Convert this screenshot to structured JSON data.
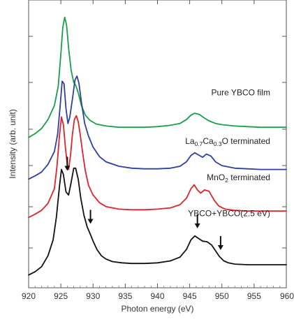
{
  "chart_data": {
    "type": "line",
    "title": "",
    "xlabel": "Photon energy (eV)",
    "ylabel": "Intensity (arb. unit)",
    "xlim": [
      920,
      960
    ],
    "x_ticks": [
      920,
      925,
      930,
      935,
      940,
      945,
      950,
      955,
      960
    ],
    "grid": false,
    "series_labels_inline": true,
    "series": [
      {
        "name": "Pure YBCO film",
        "label": "Pure YBCO film",
        "color": "#1a9e4a",
        "x": [
          920,
          921,
          922,
          923,
          924,
          924.6,
          925.0,
          925.3,
          925.6,
          925.9,
          926.2,
          926.6,
          927.0,
          927.3,
          927.7,
          928.2,
          928.8,
          929.5,
          930.5,
          932,
          934,
          936,
          938,
          940,
          942,
          943.5,
          944.5,
          945.2,
          945.8,
          946.5,
          947.2,
          948,
          949,
          950,
          952,
          954,
          956,
          958,
          960
        ],
        "y": [
          2.2,
          2.26,
          2.34,
          2.48,
          2.7,
          3.0,
          3.5,
          3.92,
          4.08,
          3.95,
          3.6,
          3.25,
          3.06,
          3.02,
          2.9,
          2.7,
          2.55,
          2.47,
          2.41,
          2.38,
          2.36,
          2.36,
          2.36,
          2.37,
          2.39,
          2.42,
          2.48,
          2.55,
          2.58,
          2.56,
          2.51,
          2.46,
          2.42,
          2.4,
          2.38,
          2.37,
          2.36,
          2.36,
          2.36
        ]
      },
      {
        "name": "La0.7Ca0.3O terminated",
        "label_parts": [
          "La",
          "0.7",
          "Ca",
          "0.3",
          "O terminated"
        ],
        "color": "#2d3fa0",
        "x": [
          920,
          921,
          922,
          923,
          924,
          924.5,
          924.9,
          925.2,
          925.5,
          925.8,
          926.1,
          926.4,
          926.8,
          927.2,
          927.5,
          927.8,
          928.2,
          928.7,
          929.3,
          930,
          931,
          932,
          934,
          936,
          938,
          940,
          942,
          943.5,
          944.5,
          945.2,
          945.8,
          946.5,
          947.0,
          947.6,
          948.3,
          949,
          950,
          952,
          954,
          956,
          958,
          960
        ],
        "y": [
          1.55,
          1.6,
          1.66,
          1.78,
          1.98,
          2.25,
          2.7,
          3.08,
          3.04,
          2.65,
          2.42,
          2.52,
          2.8,
          3.1,
          3.16,
          3.05,
          2.75,
          2.42,
          2.22,
          2.05,
          1.9,
          1.82,
          1.75,
          1.72,
          1.71,
          1.71,
          1.72,
          1.75,
          1.82,
          1.92,
          1.96,
          1.92,
          1.89,
          1.94,
          1.91,
          1.82,
          1.76,
          1.72,
          1.71,
          1.7,
          1.7,
          1.7
        ]
      },
      {
        "name": "MnO2 terminated",
        "label_parts": [
          "MnO",
          "2",
          " terminated"
        ],
        "color": "#e0222b",
        "x": [
          920,
          921,
          922,
          923,
          924,
          924.4,
          924.8,
          925.1,
          925.4,
          925.7,
          926.0,
          926.2,
          926.5,
          926.8,
          927.1,
          927.4,
          927.7,
          928.0,
          928.4,
          928.8,
          929.3,
          930,
          931,
          932,
          934,
          936,
          938,
          940,
          942,
          943.5,
          944.5,
          945.2,
          945.7,
          946.2,
          946.7,
          947.3,
          948,
          948.8,
          949.5,
          950.5,
          952,
          954,
          956,
          958,
          960
        ],
        "y": [
          0.95,
          1.0,
          1.06,
          1.17,
          1.4,
          1.75,
          2.25,
          2.52,
          2.4,
          2.05,
          1.78,
          1.7,
          1.92,
          2.25,
          2.48,
          2.54,
          2.45,
          2.25,
          1.95,
          1.68,
          1.45,
          1.3,
          1.18,
          1.12,
          1.08,
          1.07,
          1.07,
          1.08,
          1.1,
          1.15,
          1.25,
          1.4,
          1.46,
          1.38,
          1.33,
          1.38,
          1.36,
          1.22,
          1.13,
          1.08,
          1.06,
          1.05,
          1.05,
          1.05,
          1.05
        ]
      },
      {
        "name": "YBCO+YBCO(2.5 eV)",
        "label": "YBCO+YBCO(2.5 eV)",
        "color": "#111111",
        "x": [
          920,
          921,
          922,
          923,
          923.8,
          924.3,
          924.8,
          925.1,
          925.4,
          925.8,
          926.2,
          926.6,
          927.0,
          927.3,
          927.7,
          928.1,
          928.6,
          929.1,
          929.6,
          930,
          930.6,
          931.3,
          932,
          933,
          934.5,
          936,
          938,
          940,
          942,
          943.5,
          944.5,
          945.2,
          945.8,
          946.4,
          947,
          947.7,
          948.4,
          949,
          949.6,
          950.3,
          951,
          952,
          954,
          956,
          958,
          960
        ],
        "y": [
          0.05,
          0.1,
          0.18,
          0.35,
          0.6,
          0.95,
          1.45,
          1.7,
          1.62,
          1.35,
          1.3,
          1.5,
          1.72,
          1.72,
          1.55,
          1.25,
          0.98,
          0.8,
          0.68,
          0.58,
          0.45,
          0.35,
          0.3,
          0.26,
          0.24,
          0.23,
          0.23,
          0.24,
          0.27,
          0.33,
          0.45,
          0.6,
          0.66,
          0.62,
          0.58,
          0.57,
          0.52,
          0.43,
          0.34,
          0.27,
          0.24,
          0.22,
          0.21,
          0.21,
          0.21,
          0.21
        ]
      }
    ],
    "annotations": [
      {
        "type": "arrow",
        "x": 926.0,
        "y": 1.68
      },
      {
        "type": "arrow",
        "x": 929.6,
        "y": 0.85
      },
      {
        "type": "arrow",
        "x": 946.2,
        "y": 0.78
      },
      {
        "type": "arrow",
        "x": 949.8,
        "y": 0.44
      }
    ],
    "series_label_anchor": [
      {
        "x": 957.5,
        "y": 2.86
      },
      {
        "x": 957.5,
        "y": 2.1
      },
      {
        "x": 957.5,
        "y": 1.53
      },
      {
        "x": 957.5,
        "y": 0.97
      }
    ]
  }
}
